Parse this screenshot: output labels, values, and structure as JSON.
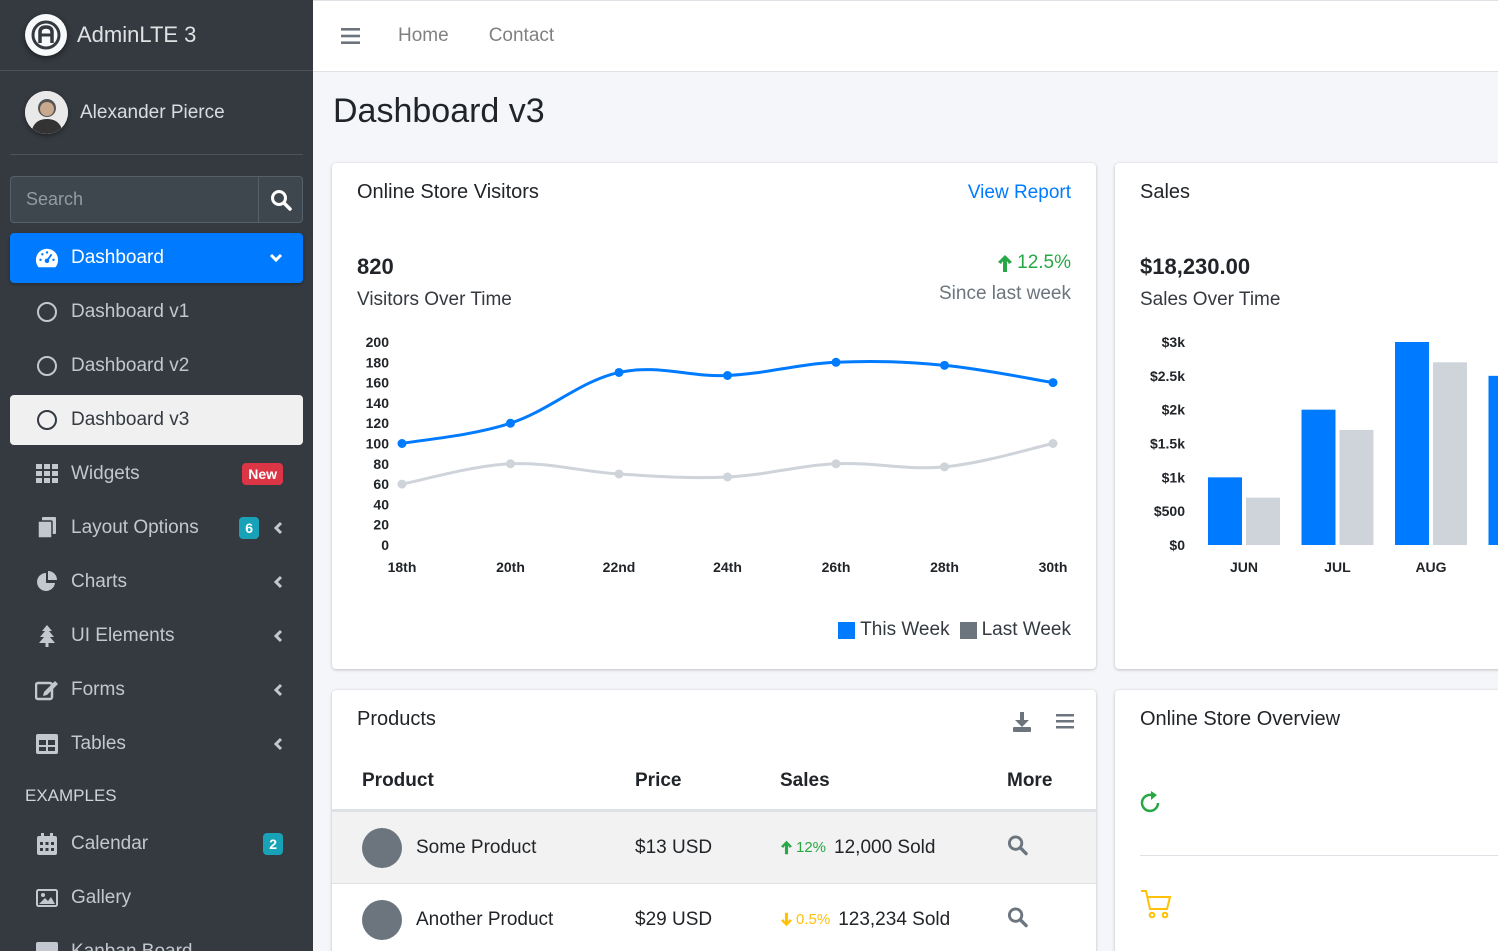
{
  "brand": {
    "name": "AdminLTE 3"
  },
  "user": {
    "name": "Alexander Pierce"
  },
  "search": {
    "placeholder": "Search"
  },
  "sidebar": {
    "items": [
      {
        "label": "Dashboard"
      },
      {
        "label": "Dashboard v1"
      },
      {
        "label": "Dashboard v2"
      },
      {
        "label": "Dashboard v3"
      },
      {
        "label": "Widgets",
        "badge": "New"
      },
      {
        "label": "Layout Options",
        "badge": "6"
      },
      {
        "label": "Charts"
      },
      {
        "label": "UI Elements"
      },
      {
        "label": "Forms"
      },
      {
        "label": "Tables"
      }
    ],
    "header": "EXAMPLES",
    "examples": [
      {
        "label": "Calendar",
        "badge": "2"
      },
      {
        "label": "Gallery"
      },
      {
        "label": "Kanban Board"
      }
    ]
  },
  "navbar": {
    "home": "Home",
    "contact": "Contact"
  },
  "page": {
    "title": "Dashboard v3"
  },
  "visitors": {
    "title": "Online Store Visitors",
    "link": "View Report",
    "count": "820",
    "count_label": "Visitors Over Time",
    "change": "12.5%",
    "change_label": "Since last week",
    "legend_this": "This Week",
    "legend_last": "Last Week"
  },
  "sales": {
    "title": "Sales",
    "total": "$18,230.00",
    "total_label": "Sales Over Time"
  },
  "products": {
    "title": "Products",
    "headers": {
      "product": "Product",
      "price": "Price",
      "sales": "Sales",
      "more": "More"
    },
    "rows": [
      {
        "name": "Some Product",
        "price": "$13 USD",
        "pct": "12%",
        "sold": "12,000 Sold",
        "trend": "up"
      },
      {
        "name": "Another Product",
        "price": "$29 USD",
        "pct": "0.5%",
        "sold": "123,234 Sold",
        "trend": "down"
      }
    ]
  },
  "overview": {
    "title": "Online Store Overview"
  },
  "colors": {
    "primary": "#007bff",
    "gray": "#ced4da",
    "success": "#28a745",
    "warning": "#ffc107"
  },
  "chart_data": [
    {
      "type": "line",
      "x": [
        "18th",
        "20th",
        "22nd",
        "24th",
        "26th",
        "28th",
        "30th"
      ],
      "series": [
        {
          "name": "This Week",
          "values": [
            100,
            120,
            170,
            167,
            180,
            177,
            160
          ]
        },
        {
          "name": "Last Week",
          "values": [
            60,
            80,
            70,
            67,
            80,
            77,
            100
          ]
        }
      ],
      "yticks": [
        0,
        20,
        40,
        60,
        80,
        100,
        120,
        140,
        160,
        180,
        200
      ],
      "ylim": [
        0,
        200
      ]
    },
    {
      "type": "bar",
      "categories": [
        "JUN",
        "JUL",
        "AUG"
      ],
      "series": [
        {
          "values": [
            1000,
            2000,
            3000
          ]
        },
        {
          "values": [
            700,
            1700,
            2700
          ]
        }
      ],
      "yticks": [
        "$0",
        "$500",
        "$1k",
        "$1.5k",
        "$2k",
        "$2.5k",
        "$3k"
      ],
      "ylim": [
        0,
        3000
      ]
    }
  ]
}
